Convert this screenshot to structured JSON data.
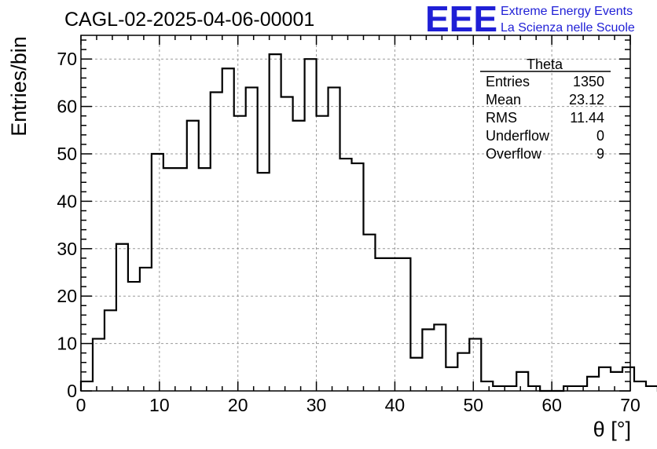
{
  "chart_data": {
    "type": "bar",
    "title": "CAGL-02-2025-04-06-00001",
    "xlabel": "θ [°]",
    "ylabel": "Entries/bin",
    "xlim": [
      0,
      70
    ],
    "ylim": [
      0,
      75
    ],
    "x_ticks": [
      0,
      10,
      20,
      30,
      40,
      50,
      60,
      70
    ],
    "y_ticks": [
      0,
      10,
      20,
      30,
      40,
      50,
      60,
      70
    ],
    "grid": true,
    "bin_width": 1.5,
    "bin_start": 0,
    "values": [
      2,
      11,
      17,
      31,
      23,
      26,
      50,
      47,
      47,
      57,
      47,
      63,
      68,
      58,
      64,
      46,
      71,
      62,
      57,
      70,
      58,
      64,
      49,
      48,
      33,
      28,
      28,
      28,
      7,
      13,
      14,
      5,
      8,
      11,
      2,
      1,
      1,
      4,
      1,
      0,
      0,
      1,
      1,
      3,
      5,
      4,
      5,
      2,
      1,
      0
    ],
    "stats": {
      "title": "Theta",
      "rows": [
        {
          "label": "Entries",
          "value": "1350"
        },
        {
          "label": "Mean",
          "value": "23.12"
        },
        {
          "label": "RMS",
          "value": "11.44"
        },
        {
          "label": "Underflow",
          "value": "0"
        },
        {
          "label": "Overflow",
          "value": "9"
        }
      ]
    }
  },
  "logo": {
    "text": "EEE",
    "line1": "Extreme Energy Events",
    "line2": "La Scienza nelle Scuole",
    "color": "#1f1fd6"
  }
}
